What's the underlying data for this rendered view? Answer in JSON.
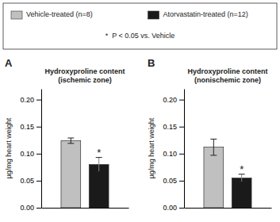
{
  "chart_data": [
    {
      "type": "bar",
      "title": "Hydroxyproline content\n(ischemic zone)",
      "panel_label": "A",
      "y_label": "µg/mg heart weight",
      "categories": [
        null
      ],
      "series": [
        {
          "name": "Vehicle-treated (n=8)",
          "color": "#c0c0c0",
          "values": [
            0.124
          ],
          "errors": [
            0.005
          ]
        },
        {
          "name": "Atorvastatin-treated (n=12)",
          "color": "#1a1a1a",
          "values": [
            0.08
          ],
          "errors": [
            0.013
          ]
        }
      ],
      "ylim": [
        0.0,
        0.22
      ],
      "yticks": [
        {
          "value": 0.0,
          "label": "0.00"
        },
        0.05,
        {
          "value": 0.1,
          "label": "0.10"
        },
        0.15,
        {
          "value": 0.2,
          "label": "0.20"
        }
      ],
      "legend": "top",
      "annotations": [
        {
          "text": "*",
          "series": 1
        },
        {
          "text": "*  P < 0.05 vs. Vehicle"
        }
      ]
    },
    {
      "type": "bar",
      "title": "Hydroxyproline content\n(nonischemic zone)",
      "panel_label": "B",
      "y_label": "µg/mg heart weight",
      "categories": [
        null
      ],
      "series": [
        {
          "color": "#c0c0c0",
          "values": [
            0.112
          ],
          "errors": [
            0.015
          ]
        },
        {
          "color": "#1a1a1a",
          "values": [
            0.055
          ],
          "errors": [
            0.007
          ]
        }
      ],
      "ylim": [
        0.0,
        0.22
      ],
      "yticks": [
        {
          "value": 0.0,
          "label": "0.00"
        },
        0.05,
        {
          "value": 0.1,
          "label": "0.10"
        },
        0.15,
        {
          "value": 0.2,
          "label": "0.20"
        }
      ],
      "annotations": [
        {
          "text": "*",
          "series": 1
        }
      ]
    }
  ]
}
